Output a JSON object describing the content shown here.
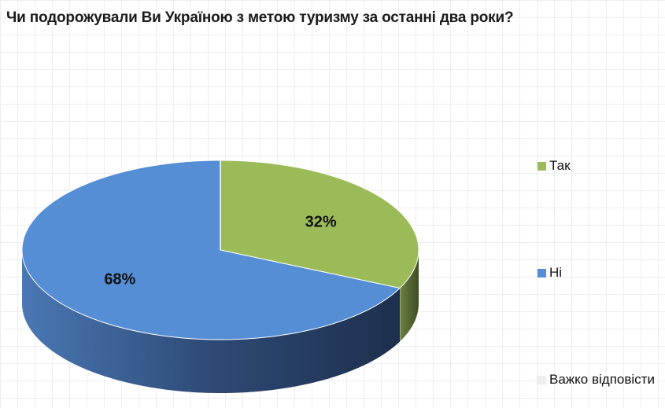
{
  "chart_data": {
    "type": "pie",
    "title": "Чи подорожували Ви Україною з метою туризму за останні два роки?",
    "categories": [
      "Так",
      "Ні",
      "Важко відповісти"
    ],
    "values": [
      32,
      68,
      0
    ],
    "data_labels": [
      "32%",
      "68%",
      ""
    ],
    "colors": [
      "#9bbb59",
      "#558ed5",
      "#eeeeee"
    ],
    "style": "3d",
    "legend_position": "right"
  }
}
